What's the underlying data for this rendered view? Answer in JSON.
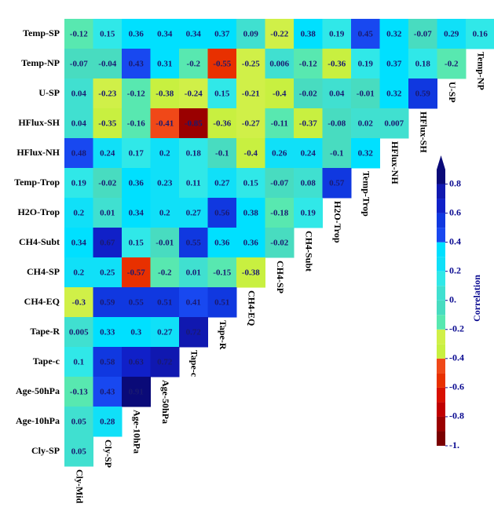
{
  "chart_data": {
    "type": "heatmap",
    "rows": [
      "Temp-SP",
      "Temp-NP",
      "U-SP",
      "HFlux-SH",
      "HFlux-NH",
      "Temp-Trop",
      "H2O-Trop",
      "CH4-Subt",
      "CH4-SP",
      "CH4-EQ",
      "Tape-R",
      "Tape-c",
      "Age-50hPa",
      "Age-10hPa",
      "Cly-SP"
    ],
    "columns": [
      "Cly-Mid",
      "Cly-SP",
      "Age-10hPa",
      "Age-50hPa",
      "Tape-c",
      "Tape-R",
      "CH4-EQ",
      "CH4-SP",
      "CH4-Subt",
      "H2O-Trop",
      "Temp-Trop",
      "HFlux-NH",
      "HFlux-SH",
      "U-SP",
      "Temp-NP"
    ],
    "values": [
      [
        -0.12,
        0.15,
        0.36,
        0.34,
        0.34,
        0.37,
        0.09,
        -0.22,
        0.38,
        0.19,
        0.45,
        0.32,
        -0.07,
        0.29,
        0.16
      ],
      [
        -0.07,
        -0.04,
        0.43,
        0.31,
        -0.2,
        -0.55,
        -0.25,
        0.006,
        -0.12,
        -0.36,
        0.19,
        0.37,
        0.18,
        -0.2
      ],
      [
        0.04,
        -0.23,
        -0.12,
        -0.38,
        -0.24,
        0.15,
        -0.21,
        -0.4,
        -0.02,
        0.04,
        -0.01,
        0.32,
        0.59
      ],
      [
        0.04,
        -0.35,
        -0.16,
        -0.41,
        -0.85,
        -0.36,
        -0.27,
        -0.11,
        -0.37,
        -0.08,
        0.02,
        0.007
      ],
      [
        0.48,
        0.24,
        0.17,
        0.2,
        0.18,
        -0.1,
        -0.4,
        0.26,
        0.24,
        -0.1,
        0.32
      ],
      [
        0.19,
        -0.02,
        0.36,
        0.23,
        0.11,
        0.27,
        0.15,
        -0.07,
        0.08,
        0.57
      ],
      [
        0.2,
        0.01,
        0.34,
        0.2,
        0.27,
        0.56,
        0.38,
        -0.18,
        0.19
      ],
      [
        0.34,
        0.67,
        0.15,
        -0.01,
        0.55,
        0.36,
        0.36,
        -0.02
      ],
      [
        0.2,
        0.25,
        -0.57,
        -0.2,
        0.01,
        -0.15,
        -0.38
      ],
      [
        -0.3,
        0.59,
        0.55,
        0.51,
        0.41,
        0.51
      ],
      [
        0.005,
        0.33,
        0.3,
        0.27,
        0.72
      ],
      [
        0.1,
        0.58,
        0.63,
        0.72
      ],
      [
        -0.13,
        0.43,
        0.91
      ],
      [
        0.05,
        0.28
      ],
      [
        0.05
      ]
    ],
    "colorbar_label": "Correlation",
    "clim": [
      -1,
      0.9
    ],
    "cticks": [
      {
        "value": -1,
        "label": "-1."
      },
      -0.8,
      -0.6,
      -0.4,
      -0.2,
      {
        "value": 0,
        "label": "0."
      },
      0.2,
      0.4,
      0.6,
      0.8
    ],
    "colorscale": {
      "bounds": [
        -1,
        -0.9,
        -0.8,
        -0.7,
        -0.6,
        -0.5,
        -0.4,
        -0.3,
        -0.2,
        -0.1,
        0,
        0.1,
        0.2,
        0.3,
        0.4,
        0.5,
        0.6,
        0.7,
        0.8,
        0.9
      ],
      "colors": [
        "#7a0000",
        "#9a0000",
        "#c00000",
        "#d81000",
        "#e83000",
        "#f04818",
        "#c8f040",
        "#d0f048",
        "#58e8b0",
        "#48dcc0",
        "#40e0d0",
        "#30e8e8",
        "#10e0f8",
        "#00e0ff",
        "#1848f0",
        "#1038e0",
        "#1020c8",
        "#1018b0",
        "#0a0a78"
      ]
    }
  }
}
